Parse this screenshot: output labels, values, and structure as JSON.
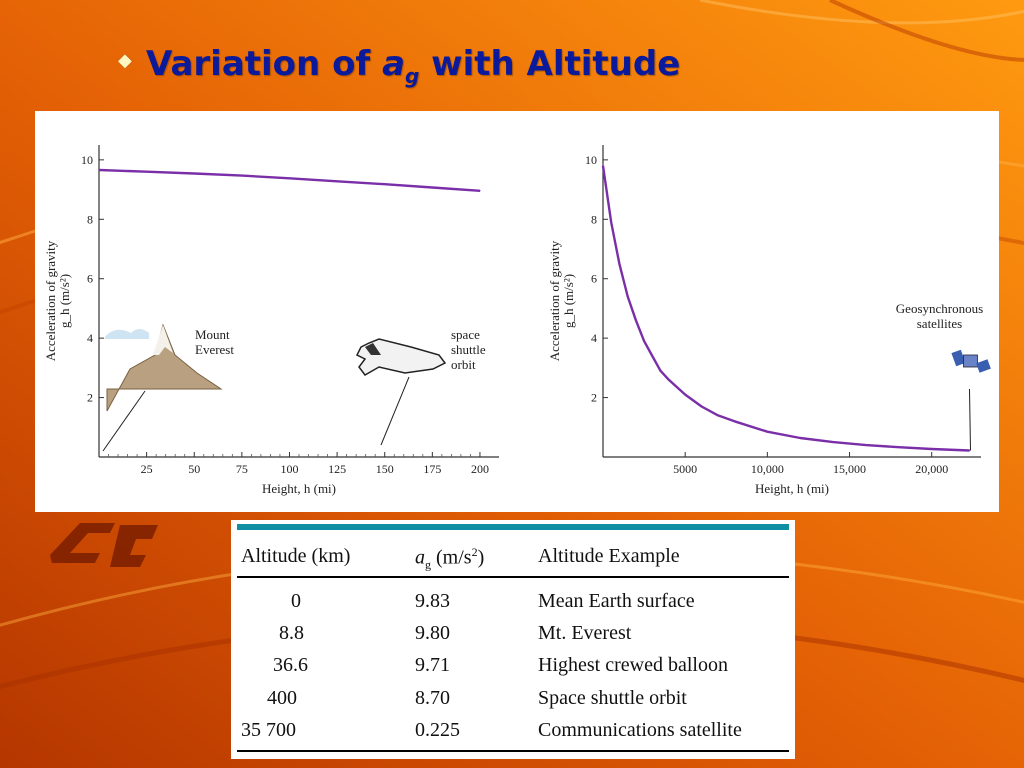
{
  "slide": {
    "title_prefix": "Variation of ",
    "title_var": "a",
    "title_sub": "g",
    "title_suffix": " with Altitude",
    "bullet": "◆"
  },
  "chart_data": [
    {
      "type": "line",
      "xlabel": "Height, h (mi)",
      "ylabel_line1": "Acceleration of gravity",
      "ylabel_line2": "g_h (m/s²)",
      "xlim": [
        0,
        210
      ],
      "ylim": [
        0,
        10.5
      ],
      "x_ticks": [
        25,
        50,
        75,
        100,
        125,
        150,
        175,
        200
      ],
      "x_tick_labels": [
        "25",
        "50",
        "75",
        "100",
        "125",
        "150",
        "175",
        "200"
      ],
      "y_ticks": [
        2,
        4,
        6,
        8,
        10
      ],
      "y_tick_labels": [
        "2",
        "4",
        "6",
        "8",
        "10"
      ],
      "series": [
        {
          "x": [
            0,
            25,
            50,
            75,
            100,
            125,
            150,
            175,
            200
          ],
          "y": [
            9.66,
            9.6,
            9.54,
            9.47,
            9.38,
            9.28,
            9.18,
            9.07,
            8.96
          ]
        }
      ],
      "annotations": [
        {
          "text": [
            "Mount",
            "Everest"
          ],
          "x": 5.5,
          "y": 0
        },
        {
          "text": [
            "space",
            "shuttle",
            "orbit"
          ],
          "x": 150,
          "y": 0
        }
      ]
    },
    {
      "type": "line",
      "xlabel": "Height, h (mi)",
      "ylabel_line1": "Acceleration of gravity",
      "ylabel_line2": "g_h (m/s²)",
      "xlim": [
        0,
        23000
      ],
      "ylim": [
        0,
        10.5
      ],
      "x_ticks": [
        5000,
        10000,
        15000,
        20000
      ],
      "x_tick_labels": [
        "5000",
        "10,000",
        "15,000",
        "20,000"
      ],
      "y_ticks": [
        2,
        4,
        6,
        8,
        10
      ],
      "y_tick_labels": [
        "2",
        "4",
        "6",
        "8",
        "10"
      ],
      "series": [
        {
          "x": [
            0,
            500,
            1000,
            1500,
            2000,
            2500,
            3000,
            3500,
            4000,
            5000,
            6000,
            7000,
            8000,
            10000,
            12000,
            14000,
            16000,
            18000,
            20000,
            22300
          ],
          "y": [
            9.8,
            7.9,
            6.5,
            5.4,
            4.6,
            3.9,
            3.4,
            2.9,
            2.6,
            2.1,
            1.7,
            1.4,
            1.2,
            0.85,
            0.64,
            0.5,
            0.4,
            0.33,
            0.27,
            0.22
          ]
        }
      ],
      "annotations": [
        {
          "text": [
            "Geosynchronous",
            "satellites"
          ],
          "x": 22300,
          "y": 0.22
        }
      ]
    }
  ],
  "table": {
    "headers": [
      "Altitude (km)",
      "a",
      "g",
      " (m/s",
      "2",
      ")",
      "Altitude Example"
    ],
    "rows": [
      [
        "0",
        "9.83",
        "Mean Earth surface"
      ],
      [
        "8.8",
        "9.80",
        "Mt. Everest"
      ],
      [
        "36.6",
        "9.71",
        "Highest crewed balloon"
      ],
      [
        "400",
        "8.70",
        "Space shuttle orbit"
      ],
      [
        "35 700",
        "0.225",
        "Communications satellite"
      ]
    ]
  },
  "colors": {
    "background_start": "#b53600",
    "background_end": "#ff9a10",
    "title": "#0a1a9a",
    "curve": "#7a2fa8",
    "table_topbar": "#0e8fa4"
  }
}
